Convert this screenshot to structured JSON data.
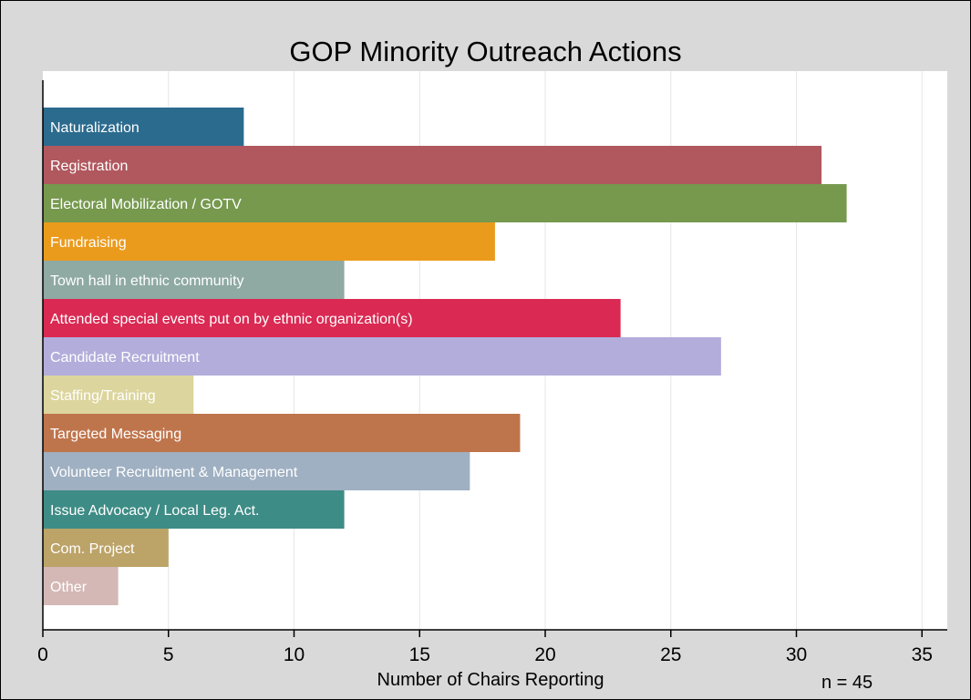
{
  "chart_data": {
    "type": "bar",
    "orientation": "horizontal",
    "title": "GOP Minority Outreach Actions",
    "xlabel": "Number of Chairs Reporting",
    "ylabel": "",
    "annotation": "n = 45",
    "xlim": [
      0,
      36
    ],
    "xticks": [
      "0",
      "5",
      "10",
      "15",
      "20",
      "25",
      "30",
      "35"
    ],
    "grid": true,
    "bars": [
      {
        "label": "Naturalization",
        "value": 8,
        "color": "#2b6b8e",
        "text_color": "#ffffff"
      },
      {
        "label": "Registration",
        "value": 31,
        "color": "#b0585e",
        "text_color": "#ffffff"
      },
      {
        "label": "Electoral Mobilization / GOTV",
        "value": 32,
        "color": "#76994e",
        "text_color": "#ffffff"
      },
      {
        "label": "Fundraising",
        "value": 18,
        "color": "#eb9b1c",
        "text_color": "#ffffff"
      },
      {
        "label": "Town hall in ethnic community",
        "value": 12,
        "color": "#8fa9a3",
        "text_color": "#ffffff"
      },
      {
        "label": "Attended special events put on by ethnic organization(s)",
        "value": 23,
        "color": "#da2953",
        "text_color": "#ffffff"
      },
      {
        "label": "Candidate Recruitment",
        "value": 27,
        "color": "#b3addb",
        "text_color": "#ffffff"
      },
      {
        "label": "Staffing/Training",
        "value": 6,
        "color": "#dcd59d",
        "text_color": "#ffffff"
      },
      {
        "label": "Targeted Messaging",
        "value": 19,
        "color": "#bf754c",
        "text_color": "#ffffff"
      },
      {
        "label": "Volunteer Recruitment & Management",
        "value": 17,
        "color": "#9fb0c2",
        "text_color": "#ffffff"
      },
      {
        "label": "Issue Advocacy / Local Leg. Act.",
        "value": 12,
        "color": "#3e8c86",
        "text_color": "#ffffff"
      },
      {
        "label": "Com. Project",
        "value": 5,
        "color": "#bca368",
        "text_color": "#ffffff"
      },
      {
        "label": "Other",
        "value": 3,
        "color": "#d4b8b6",
        "text_color": "#ffffff"
      }
    ]
  }
}
